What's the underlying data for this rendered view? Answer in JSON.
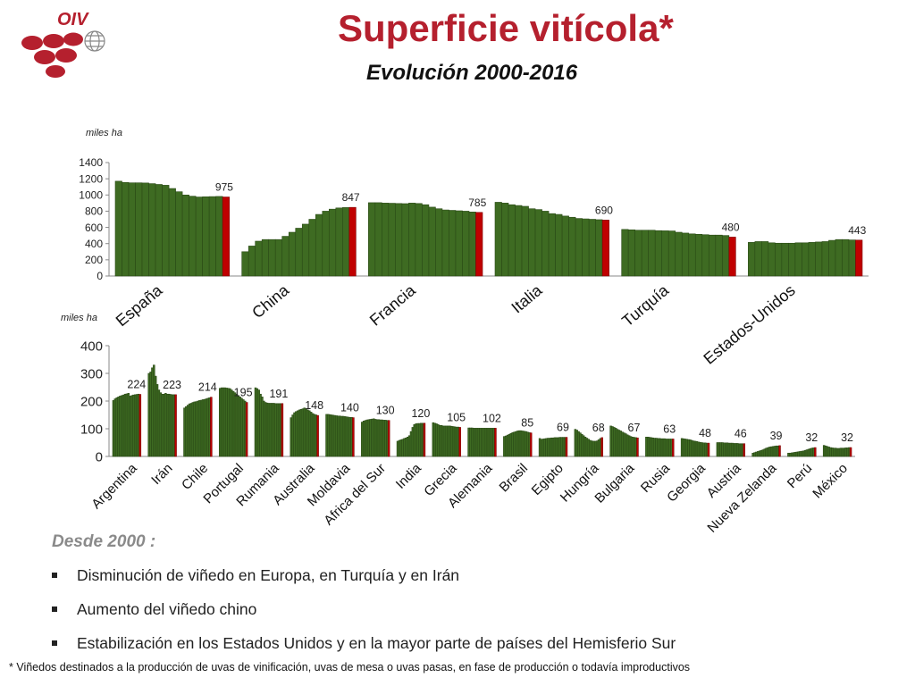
{
  "header": {
    "logo_text": "OIV",
    "title": "Superficie vitícola*",
    "subtitle": "Evolución 2000-2016"
  },
  "colors": {
    "bar": "#3e6b22",
    "bar_stroke": "#2a4a16",
    "highlight": "#c00000",
    "title": "#b5202e",
    "logo": "#b5202e"
  },
  "chart_data": [
    {
      "type": "bar",
      "ylabel": "miles ha",
      "ylim": [
        0,
        1400
      ],
      "yticks": [
        0,
        200,
        400,
        600,
        800,
        1000,
        1200,
        1400
      ],
      "x_years": "2000-2016",
      "grid": false,
      "series": [
        {
          "name": "España",
          "end_label": "975",
          "values": [
            1170,
            1155,
            1150,
            1150,
            1148,
            1140,
            1130,
            1120,
            1080,
            1040,
            1000,
            985,
            975,
            978,
            980,
            982,
            975
          ]
        },
        {
          "name": "China",
          "end_label": "847",
          "values": [
            300,
            370,
            430,
            450,
            450,
            450,
            490,
            540,
            590,
            640,
            700,
            760,
            800,
            825,
            840,
            845,
            847
          ]
        },
        {
          "name": "Francia",
          "end_label": "785",
          "values": [
            905,
            905,
            900,
            898,
            895,
            893,
            900,
            895,
            880,
            850,
            830,
            815,
            810,
            805,
            800,
            790,
            785
          ]
        },
        {
          "name": "Italia",
          "end_label": "690",
          "values": [
            910,
            900,
            880,
            870,
            860,
            830,
            820,
            800,
            770,
            760,
            740,
            725,
            710,
            705,
            700,
            695,
            690
          ]
        },
        {
          "name": "Turquía",
          "end_label": "480",
          "values": [
            575,
            570,
            565,
            565,
            565,
            560,
            558,
            556,
            540,
            530,
            520,
            515,
            510,
            505,
            505,
            500,
            480
          ]
        },
        {
          "name": "Estados-Unidos",
          "end_label": "443",
          "values": [
            415,
            425,
            425,
            410,
            405,
            405,
            405,
            410,
            410,
            415,
            420,
            425,
            440,
            450,
            450,
            445,
            443
          ]
        }
      ]
    },
    {
      "type": "bar",
      "ylabel": "miles ha",
      "ylim": [
        0,
        400
      ],
      "yticks": [
        0,
        100,
        200,
        300,
        400
      ],
      "x_years": "2000-2016",
      "grid": false,
      "series": [
        {
          "name": "Argentina",
          "end_label": "224",
          "values": [
            202,
            208,
            212,
            215,
            218,
            220,
            222,
            225,
            226,
            228,
            218,
            220,
            222,
            223,
            224,
            225,
            224
          ]
        },
        {
          "name": "Irán",
          "end_label": "223",
          "values": [
            300,
            305,
            320,
            330,
            290,
            260,
            240,
            230,
            225,
            225,
            228,
            225,
            225,
            224,
            223,
            223,
            223
          ]
        },
        {
          "name": "Chile",
          "end_label": "214",
          "values": [
            175,
            180,
            185,
            190,
            192,
            195,
            197,
            198,
            200,
            202,
            203,
            205,
            206,
            208,
            210,
            212,
            214
          ]
        },
        {
          "name": "Portugal",
          "end_label": "195",
          "values": [
            246,
            248,
            248,
            248,
            247,
            246,
            245,
            240,
            235,
            230,
            225,
            220,
            215,
            210,
            205,
            200,
            195
          ]
        },
        {
          "name": "Rumania",
          "end_label": "191",
          "values": [
            248,
            245,
            240,
            225,
            215,
            200,
            195,
            193,
            192,
            192,
            192,
            192,
            191,
            191,
            191,
            191,
            191
          ]
        },
        {
          "name": "Australia",
          "end_label": "148",
          "values": [
            140,
            150,
            158,
            162,
            165,
            168,
            170,
            172,
            175,
            172,
            168,
            165,
            160,
            155,
            152,
            150,
            148
          ]
        },
        {
          "name": "Moldavia",
          "end_label": "140",
          "values": [
            152,
            152,
            151,
            150,
            149,
            148,
            147,
            146,
            146,
            145,
            145,
            144,
            143,
            142,
            141,
            141,
            140
          ]
        },
        {
          "name": "Africa del Sur",
          "end_label": "130",
          "values": [
            124,
            128,
            130,
            132,
            133,
            134,
            135,
            136,
            134,
            133,
            133,
            132,
            132,
            131,
            131,
            130,
            130
          ]
        },
        {
          "name": "India",
          "end_label": "120",
          "values": [
            55,
            58,
            60,
            62,
            65,
            67,
            70,
            75,
            90,
            105,
            115,
            118,
            119,
            119,
            120,
            120,
            120
          ]
        },
        {
          "name": "Grecia",
          "end_label": "105",
          "values": [
            122,
            120,
            118,
            115,
            112,
            112,
            110,
            110,
            110,
            110,
            110,
            109,
            108,
            107,
            106,
            106,
            105
          ]
        },
        {
          "name": "Alemania",
          "end_label": "102",
          "values": [
            103,
            103,
            103,
            102,
            102,
            102,
            102,
            102,
            102,
            102,
            102,
            102,
            102,
            102,
            102,
            102,
            102
          ]
        },
        {
          "name": "Brasil",
          "end_label": "85",
          "values": [
            72,
            74,
            77,
            80,
            83,
            86,
            88,
            90,
            92,
            93,
            93,
            92,
            91,
            90,
            88,
            86,
            85
          ]
        },
        {
          "name": "Egipto",
          "end_label": "69",
          "values": [
            65,
            62,
            63,
            64,
            65,
            66,
            66,
            67,
            67,
            68,
            68,
            68,
            69,
            69,
            69,
            69,
            69
          ]
        },
        {
          "name": "Hungría",
          "end_label": "68",
          "values": [
            98,
            95,
            90,
            85,
            80,
            75,
            70,
            66,
            62,
            58,
            56,
            55,
            55,
            56,
            60,
            65,
            68
          ]
        },
        {
          "name": "Bulgaria",
          "end_label": "67",
          "values": [
            110,
            108,
            105,
            102,
            98,
            95,
            92,
            88,
            85,
            82,
            78,
            75,
            72,
            70,
            69,
            68,
            67
          ]
        },
        {
          "name": "Rusia",
          "end_label": "63",
          "values": [
            70,
            70,
            69,
            68,
            67,
            66,
            66,
            65,
            65,
            64,
            64,
            64,
            63,
            63,
            63,
            63,
            63
          ]
        },
        {
          "name": "Georgia",
          "end_label": "48",
          "values": [
            65,
            64,
            63,
            62,
            61,
            60,
            58,
            56,
            55,
            54,
            52,
            51,
            50,
            49,
            49,
            48,
            48
          ]
        },
        {
          "name": "Austria",
          "end_label": "46",
          "values": [
            50,
            50,
            50,
            50,
            49,
            49,
            49,
            48,
            48,
            48,
            47,
            47,
            47,
            46,
            46,
            46,
            46
          ]
        },
        {
          "name": "Nueva Zelanda",
          "end_label": "39",
          "values": [
            12,
            14,
            16,
            18,
            20,
            22,
            24,
            27,
            30,
            32,
            34,
            35,
            36,
            37,
            38,
            38,
            39
          ]
        },
        {
          "name": "Perú",
          "end_label": "32",
          "values": [
            12,
            12,
            13,
            14,
            15,
            16,
            17,
            18,
            19,
            20,
            22,
            24,
            26,
            28,
            30,
            31,
            32
          ]
        },
        {
          "name": "México",
          "end_label": "32",
          "values": [
            40,
            38,
            36,
            34,
            32,
            31,
            30,
            30,
            29,
            29,
            30,
            30,
            30,
            31,
            31,
            32,
            32
          ]
        }
      ]
    }
  ],
  "desde_label": "Desde 2000 :",
  "bullets": [
    "Disminución de viñedo en Europa, en Turquía y en Irán",
    "Aumento del viñedo chino",
    "Estabilización en los Estados Unidos y en la mayor parte de países del Hemisferio Sur"
  ],
  "footnote": "*  Viñedos destinados a la producción de uvas de vinificación, uvas de mesa o uvas pasas, en fase de producción o todavía improductivos"
}
